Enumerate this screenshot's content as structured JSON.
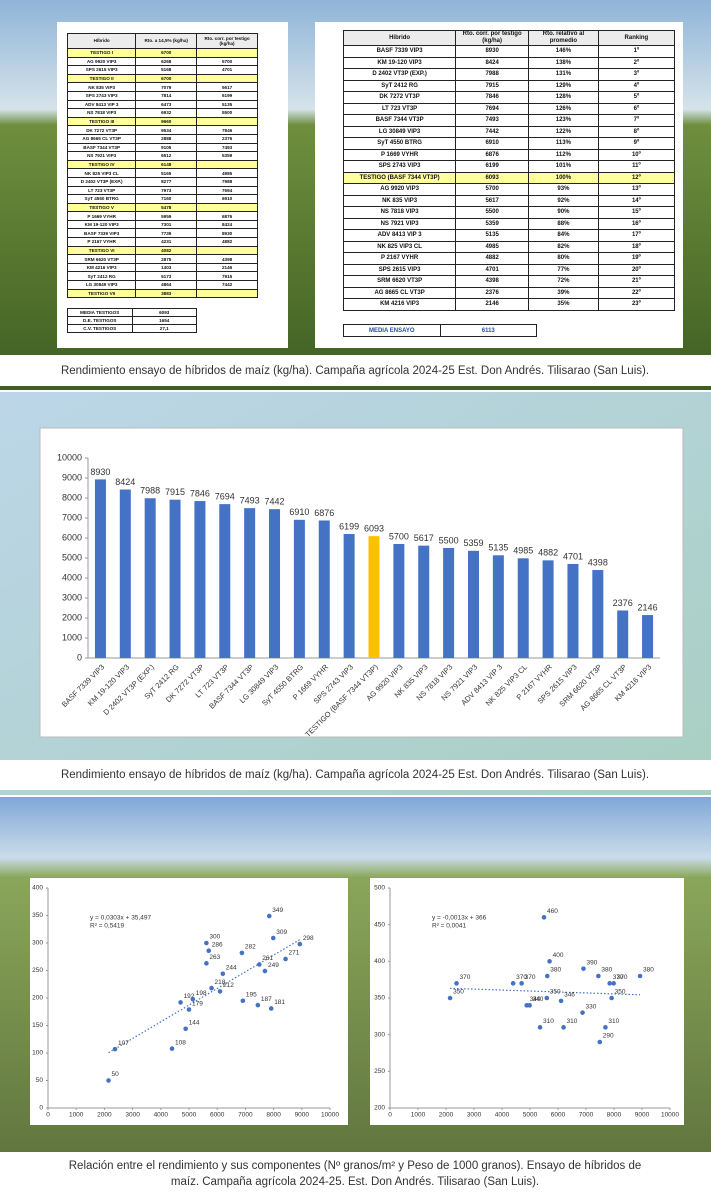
{
  "table_1": {
    "header": [
      "Híbrido",
      "Rto. a 14,5% (kg/ha)",
      "Rto. corr. por testigo (kg/ha)"
    ],
    "highlight": [
      0,
      3,
      8,
      13,
      18,
      23,
      28
    ],
    "rows": [
      [
        "TESTIGO I",
        6700,
        null
      ],
      [
        "AG 9920 VIP3",
        6268,
        5700
      ],
      [
        "SPS 2615 VIP3",
        5168,
        4701
      ],
      [
        "TESTIGO II",
        6700,
        null
      ],
      [
        "NK 835 VIP3",
        7079,
        5617
      ],
      [
        "SPS 2743 VIP3",
        7814,
        6199
      ],
      [
        "ADV 8413 VIP 3",
        6473,
        5135
      ],
      [
        "NS 7818 VIP3",
        6932,
        5500
      ],
      [
        "TESTIGO III",
        9660,
        null
      ],
      [
        "DK 7272 VT3P",
        9534,
        7846
      ],
      [
        "AG 8665 CL VT3P",
        2888,
        2376
      ],
      [
        "BASF 7344 VT3P",
        9105,
        7493
      ],
      [
        "NS 7921 VIP3",
        6512,
        5359
      ],
      [
        "TESTIGO IV",
        6148,
        null
      ],
      [
        "NK 825 VIP3 CL",
        5165,
        4985
      ],
      [
        "D 2402 VT3P (EXP.)",
        8277,
        7988
      ],
      [
        "LT 723 VT3P",
        7973,
        7694
      ],
      [
        "SyT 4550 BTRG",
        7160,
        6910
      ],
      [
        "TESTIGO V",
        5478,
        null
      ],
      [
        "P 1669 VYHR",
        5959,
        6876
      ],
      [
        "KM 19-120 VIP3",
        7301,
        8424
      ],
      [
        "BASF 7339 VIP3",
        7739,
        8930
      ],
      [
        "P 2167 VYHR",
        4231,
        4882
      ],
      [
        "TESTIGO VI",
        4082,
        null
      ],
      [
        "SRM 6620 VT3P",
        2875,
        4398
      ],
      [
        "KM 4216 VIP3",
        1403,
        2146
      ],
      [
        "SyT 2412 RG",
        5173,
        7915
      ],
      [
        "LG 30849 VIP3",
        4864,
        7442
      ],
      [
        "TESTIGO VII",
        3883,
        null
      ]
    ],
    "summary": [
      [
        "MEDIA TESTIGOS",
        6093
      ],
      [
        "D.E. TESTIGOS",
        1654
      ],
      [
        "C.V. TESTIGOS",
        "27,1"
      ]
    ]
  },
  "table_2": {
    "header": [
      "Híbrido",
      "Rto. corr. por testigo (kg/ha)",
      "Rto. relativo al promedio",
      "Ranking"
    ],
    "highlight": [
      11
    ],
    "rows": [
      [
        "BASF 7339 VIP3",
        8930,
        "146%",
        "1º"
      ],
      [
        "KM 19-120 VIP3",
        8424,
        "138%",
        "2º"
      ],
      [
        "D 2402 VT3P (EXP.)",
        7988,
        "131%",
        "3º"
      ],
      [
        "SyT 2412 RG",
        7915,
        "129%",
        "4º"
      ],
      [
        "DK 7272 VT3P",
        7846,
        "128%",
        "5º"
      ],
      [
        "LT 723 VT3P",
        7694,
        "126%",
        "6º"
      ],
      [
        "BASF 7344 VT3P",
        7493,
        "123%",
        "7º"
      ],
      [
        "LG 30849 VIP3",
        7442,
        "122%",
        "8º"
      ],
      [
        "SyT 4550 BTRG",
        6910,
        "113%",
        "9º"
      ],
      [
        "P 1669 VYHR",
        6876,
        "112%",
        "10º"
      ],
      [
        "SPS 2743 VIP3",
        6199,
        "101%",
        "11º"
      ],
      [
        "TESTIGO (BASF 7344 VT3P)",
        6093,
        "100%",
        "12º"
      ],
      [
        "AG 9920 VIP3",
        5700,
        "93%",
        "13º"
      ],
      [
        "NK 835 VIP3",
        5617,
        "92%",
        "14º"
      ],
      [
        "NS 7818 VIP3",
        5500,
        "90%",
        "15º"
      ],
      [
        "NS 7921 VIP3",
        5359,
        "88%",
        "16º"
      ],
      [
        "ADV 8413 VIP 3",
        5135,
        "84%",
        "17º"
      ],
      [
        "NK 825 VIP3 CL",
        4985,
        "82%",
        "18º"
      ],
      [
        "P 2167 VYHR",
        4882,
        "80%",
        "19º"
      ],
      [
        "SPS 2615 VIP3",
        4701,
        "77%",
        "20º"
      ],
      [
        "SRM 6620 VT3P",
        4398,
        "72%",
        "21º"
      ],
      [
        "AG 8665 CL VT3P",
        2376,
        "39%",
        "22º"
      ],
      [
        "KM 4216 VIP3",
        2146,
        "35%",
        "23º"
      ]
    ],
    "summary": [
      [
        "MEDIA ENSAYO",
        6113
      ]
    ]
  },
  "captions": [
    "Rendimiento ensayo de híbridos de maíz (kg/ha). Campaña agrícola 2024-25 Est. Don Andrés. Tilisarao (San Luis).",
    "Rendimiento ensayo de híbridos de maíz (kg/ha). Campaña agrícola 2024-25 Est. Don Andrés. Tilisarao (San Luis).",
    "Relación entre el rendimiento y sus componentes (Nº granos/m² y Peso de 1000 granos). Ensayo de híbridos de",
    "maíz. Campaña agrícola 2024-25.  Est. Don Andrés. Tilisarao (San Luis)."
  ],
  "chart_data": [
    {
      "type": "bar",
      "categories": [
        "BASF 7339 VIP3",
        "KM 19-120 VIP3",
        "D 2402 VT3P (EXP.)",
        "SyT 2412 RG",
        "DK 7272 VT3P",
        "LT 723 VT3P",
        "BASF 7344 VT3P",
        "LG 30849 VIP3",
        "SyT 4550 BTRG",
        "P 1669 VYHR",
        "SPS 2743 VIP3",
        "TESTIGO (BASF 7344 VT3P)",
        "AG 9920 VIP3",
        "NK 835 VIP3",
        "NS 7818 VIP3",
        "NS 7921 VIP3",
        "ADV 8413 VIP 3",
        "NK 825 VIP3 CL",
        "P 2167 VYHR",
        "SPS 2615 VIP3",
        "SRM 6620 VT3P",
        "AG 8665 CL VT3P",
        "KM 4216 VIP3"
      ],
      "values": [
        8930,
        8424,
        7988,
        7915,
        7846,
        7694,
        7493,
        7442,
        6910,
        6876,
        6199,
        6093,
        5700,
        5617,
        5500,
        5359,
        5135,
        4985,
        4882,
        4701,
        4398,
        2376,
        2146
      ],
      "colors": [
        "#4472c4",
        "#4472c4",
        "#4472c4",
        "#4472c4",
        "#4472c4",
        "#4472c4",
        "#4472c4",
        "#4472c4",
        "#4472c4",
        "#4472c4",
        "#4472c4",
        "#ffc000",
        "#4472c4",
        "#4472c4",
        "#4472c4",
        "#4472c4",
        "#4472c4",
        "#4472c4",
        "#4472c4",
        "#4472c4",
        "#4472c4",
        "#4472c4",
        "#4472c4"
      ],
      "ylim": [
        0,
        10000
      ],
      "yticks": [
        0,
        1000,
        2000,
        3000,
        4000,
        5000,
        6000,
        7000,
        8000,
        9000,
        10000
      ]
    },
    {
      "type": "scatter",
      "color": "#4472c4",
      "x": [
        2146,
        2376,
        4398,
        4882,
        4701,
        5000,
        5135,
        5617,
        5700,
        5617,
        5800,
        6100,
        6199,
        6876,
        6910,
        7442,
        7493,
        7694,
        7846,
        7988,
        7915,
        8424,
        8930
      ],
      "values": [
        50,
        107,
        108,
        144,
        192,
        179,
        198,
        300,
        286,
        263,
        218,
        212,
        244,
        282,
        195,
        187,
        261,
        249,
        349,
        309,
        181,
        271,
        298
      ],
      "xlim": [
        0,
        10000
      ],
      "xticks": [
        0,
        1000,
        2000,
        3000,
        4000,
        5000,
        6000,
        7000,
        8000,
        9000,
        10000
      ],
      "ylim": [
        0,
        400
      ],
      "yticks": [
        0,
        50,
        100,
        150,
        200,
        250,
        300,
        350,
        400
      ],
      "trend": {
        "slope": 0.0303,
        "intercept": 35.497,
        "label": "y = 0,0303x + 35,497",
        "r2_label": "R² = 0,5419"
      }
    },
    {
      "type": "scatter",
      "color": "#4472c4",
      "x": [
        2146,
        2376,
        4398,
        4701,
        4882,
        4985,
        5359,
        5500,
        5617,
        5700,
        5600,
        6110,
        6199,
        6876,
        6910,
        7442,
        7493,
        7694,
        7846,
        7915,
        7988,
        8930
      ],
      "values": [
        350,
        370,
        370,
        370,
        340,
        340,
        310,
        460,
        380,
        400,
        350,
        346,
        310,
        330,
        390,
        380,
        290,
        310,
        370,
        350,
        370,
        380
      ],
      "xlim": [
        0,
        10000
      ],
      "xticks": [
        0,
        1000,
        2000,
        3000,
        4000,
        5000,
        6000,
        7000,
        8000,
        9000,
        10000
      ],
      "ylim": [
        200,
        500
      ],
      "yticks": [
        200,
        250,
        300,
        350,
        400,
        450,
        500
      ],
      "trend": {
        "slope": -0.0013,
        "intercept": 366,
        "label": "y = -0,0013x + 366",
        "r2_label": "R² = 0,0041"
      }
    }
  ]
}
